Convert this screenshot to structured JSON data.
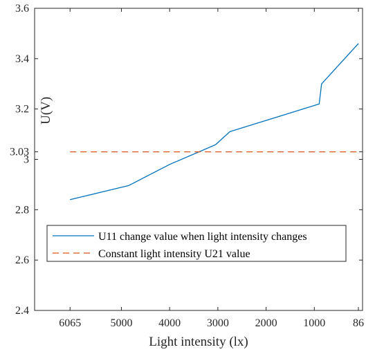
{
  "chart_data": {
    "type": "line",
    "xlabel": "Light intensity (lx)",
    "ylabel": "U(V)",
    "x_axis": {
      "direction": "reversed",
      "range": [
        6800,
        0
      ],
      "ticks": [
        {
          "value": 6065,
          "label": "6065"
        },
        {
          "value": 5000,
          "label": "5000"
        },
        {
          "value": 4000,
          "label": "4000"
        },
        {
          "value": 3000,
          "label": "3000"
        },
        {
          "value": 2000,
          "label": "2000"
        },
        {
          "value": 1000,
          "label": "1000"
        },
        {
          "value": 86,
          "label": "86"
        }
      ]
    },
    "y_axis": {
      "range": [
        2.4,
        3.6
      ],
      "ticks": [
        {
          "value": 2.4,
          "label": "2.4"
        },
        {
          "value": 2.6,
          "label": "2.6"
        },
        {
          "value": 2.8,
          "label": "2.8"
        },
        {
          "value": 3.0,
          "label": "3"
        },
        {
          "value": 3.03,
          "label": "3.03"
        },
        {
          "value": 3.2,
          "label": "3.2"
        },
        {
          "value": 3.4,
          "label": "3.4"
        },
        {
          "value": 3.6,
          "label": "3.6"
        }
      ]
    },
    "grid": false,
    "legend_position": "lower-left",
    "series": [
      {
        "name": "U11 change value when light intensity changes",
        "style": "solid",
        "color": "#0072BD",
        "x": [
          6065,
          4850,
          4000,
          3050,
          2750,
          900,
          850,
          86
        ],
        "y": [
          2.84,
          2.896,
          2.98,
          3.058,
          3.11,
          3.22,
          3.3,
          3.46
        ]
      },
      {
        "name": "Constant light intensity U21 value",
        "style": "dashed",
        "color": "#D95319",
        "x": [
          6065,
          86
        ],
        "y": [
          3.03,
          3.03
        ]
      }
    ]
  }
}
